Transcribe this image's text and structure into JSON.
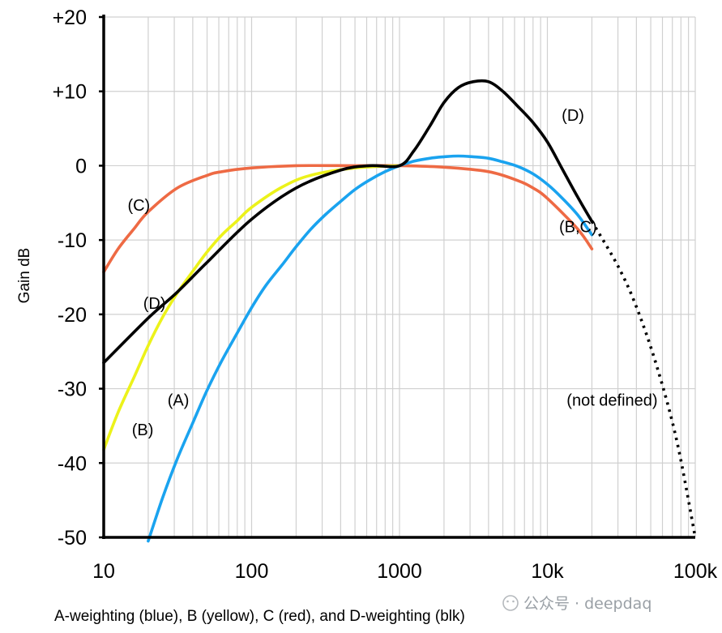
{
  "chart_data": {
    "type": "line",
    "xscale": "log",
    "xlim": [
      10,
      100000
    ],
    "ylim": [
      -50,
      20
    ],
    "ylabel": "Gain dB",
    "grid": true,
    "x_ticks": [
      {
        "value": 10,
        "label": "10"
      },
      {
        "value": 100,
        "label": "100"
      },
      {
        "value": 1000,
        "label": "1000"
      },
      {
        "value": 10000,
        "label": "10k"
      },
      {
        "value": 100000,
        "label": "100k"
      }
    ],
    "y_ticks": [
      {
        "value": 20,
        "label": "+20"
      },
      {
        "value": 10,
        "label": "+10"
      },
      {
        "value": 0,
        "label": "0"
      },
      {
        "value": -10,
        "label": "-10"
      },
      {
        "value": -20,
        "label": "-20"
      },
      {
        "value": -30,
        "label": "-30"
      },
      {
        "value": -40,
        "label": "-40"
      },
      {
        "value": -50,
        "label": "-50"
      }
    ],
    "series": [
      {
        "color": "#ee6a44",
        "style": "solid",
        "x": [
          10,
          12.5,
          16,
          20,
          31.5,
          50,
          63,
          100,
          200,
          500,
          1000,
          2000,
          4000,
          6300,
          8000,
          10000,
          16000,
          20000
        ],
        "y": [
          -14.3,
          -11.2,
          -8.5,
          -6.2,
          -3.0,
          -1.3,
          -0.8,
          -0.3,
          0.0,
          0.0,
          0.0,
          -0.2,
          -0.8,
          -2.0,
          -3.0,
          -4.4,
          -8.5,
          -11.2
        ]
      },
      {
        "color": "#ecf21a",
        "style": "solid",
        "x": [
          10,
          12.5,
          16,
          20,
          25,
          31.5,
          40,
          50,
          63,
          80,
          100,
          160,
          250,
          500,
          1000
        ],
        "y": [
          -38.2,
          -33.2,
          -28.5,
          -24.2,
          -20.4,
          -17.1,
          -14.2,
          -11.6,
          -9.3,
          -7.4,
          -5.6,
          -2.9,
          -1.3,
          -0.3,
          0.0
        ]
      },
      {
        "color": "#1aa3ef",
        "style": "solid",
        "x": [
          20,
          25,
          31.5,
          40,
          50,
          63,
          80,
          100,
          125,
          160,
          200,
          250,
          315,
          400,
          500,
          630,
          800,
          1000,
          1250,
          1600,
          2000,
          2500,
          3150,
          4000,
          5000,
          6300,
          8000,
          10000,
          12500,
          16000,
          20000
        ],
        "y": [
          -50.5,
          -44.7,
          -39.4,
          -34.6,
          -30.2,
          -26.2,
          -22.5,
          -19.1,
          -16.1,
          -13.4,
          -10.9,
          -8.6,
          -6.6,
          -4.8,
          -3.2,
          -1.9,
          -0.8,
          0.0,
          0.6,
          1.0,
          1.2,
          1.3,
          1.2,
          1.0,
          0.5,
          -0.1,
          -1.1,
          -2.5,
          -4.3,
          -6.6,
          -9.3
        ]
      },
      {
        "color": "#000000",
        "style": "solid",
        "x": [
          10,
          20,
          31.5,
          50,
          100,
          200,
          400,
          630,
          1000,
          1250,
          1600,
          2000,
          2500,
          3150,
          4000,
          5000,
          6300,
          8000,
          10000,
          12500,
          16000,
          20000
        ],
        "y": [
          -26.5,
          -20.5,
          -17.0,
          -13.0,
          -7.2,
          -3.0,
          -0.6,
          0.0,
          0.0,
          2.0,
          5.3,
          8.5,
          10.5,
          11.3,
          11.3,
          10.0,
          8.0,
          5.8,
          3.2,
          -0.3,
          -4.2,
          -7.5
        ]
      },
      {
        "color": "#000000",
        "style": "dotted",
        "x": [
          20000,
          30000,
          40000,
          55000,
          75000,
          100000
        ],
        "y": [
          -7.5,
          -13.5,
          -19.0,
          -27.0,
          -37.0,
          -50.0
        ]
      }
    ],
    "annotations": [
      {
        "text": "(C)",
        "x": 14.5,
        "y": -5.3
      },
      {
        "text": "(D)",
        "x": 18.5,
        "y": -18.5
      },
      {
        "text": "(A)",
        "x": 27,
        "y": -31.5
      },
      {
        "text": "(B)",
        "x": 15.5,
        "y": -35.5
      },
      {
        "text": "(D)",
        "x": 12500,
        "y": 6.8
      },
      {
        "text": "(B,C)",
        "x": 12000,
        "y": -8.2
      },
      {
        "text": "(not defined)",
        "x": 13500,
        "y": -31.5
      }
    ],
    "caption": "A-weighting (blue), B (yellow), C (red), and D-weighting (blk)"
  },
  "watermark": "公众号 · deepdaq"
}
